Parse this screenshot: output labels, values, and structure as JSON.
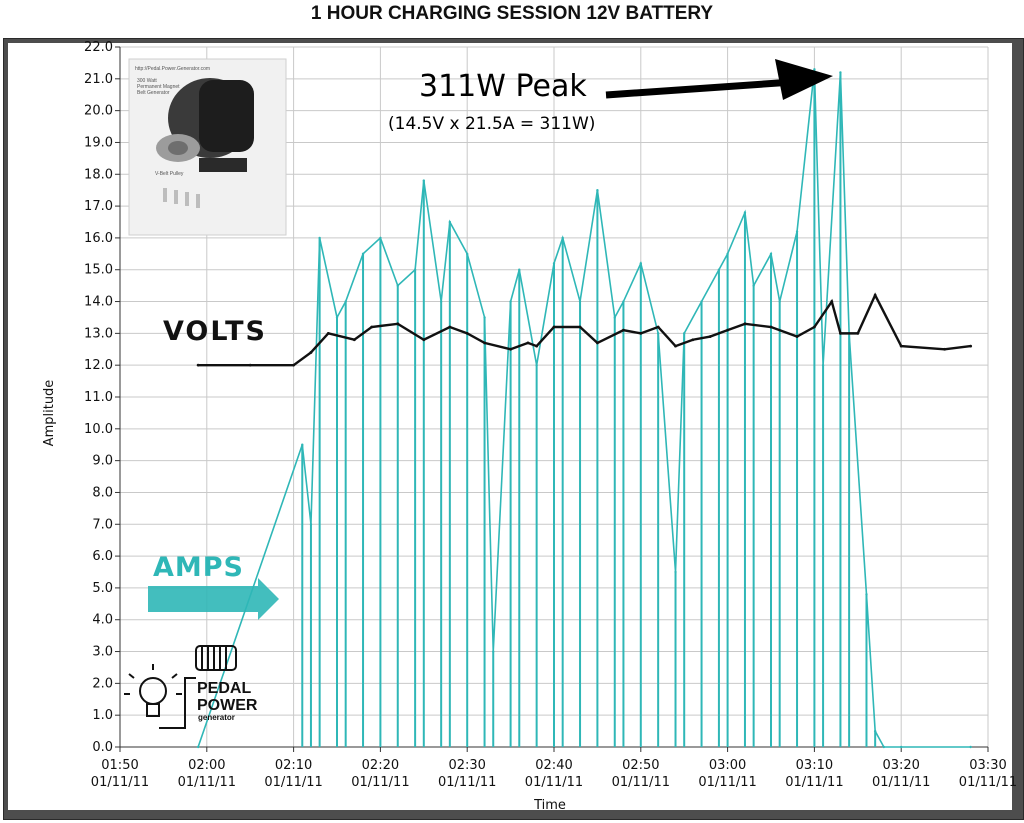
{
  "title": "1 HOUR CHARGING SESSION 12V BATTERY",
  "chart_data": {
    "type": "line",
    "xlabel": "Time",
    "ylabel": "Amplitude",
    "ylim": [
      0,
      22
    ],
    "yticks": [
      "0.0",
      "1.0",
      "2.0",
      "3.0",
      "4.0",
      "5.0",
      "6.0",
      "7.0",
      "8.0",
      "9.0",
      "10.0",
      "11.0",
      "12.0",
      "13.0",
      "14.0",
      "15.0",
      "16.0",
      "17.0",
      "18.0",
      "19.0",
      "20.0",
      "21.0",
      "22.0"
    ],
    "xlim": [
      "01:50",
      "03:30"
    ],
    "xticks": [
      {
        "time": "01:50",
        "date": "01/11/11"
      },
      {
        "time": "02:00",
        "date": "01/11/11"
      },
      {
        "time": "02:10",
        "date": "01/11/11"
      },
      {
        "time": "02:20",
        "date": "01/11/11"
      },
      {
        "time": "02:30",
        "date": "01/11/11"
      },
      {
        "time": "02:40",
        "date": "01/11/11"
      },
      {
        "time": "02:50",
        "date": "01/11/11"
      },
      {
        "time": "03:00",
        "date": "01/11/11"
      },
      {
        "time": "03:10",
        "date": "01/11/11"
      },
      {
        "time": "03:20",
        "date": "01/11/11"
      },
      {
        "time": "03:30",
        "date": "01/11/11"
      }
    ],
    "grid": true,
    "series": [
      {
        "name": "VOLTS",
        "color": "#111111",
        "x": [
          "01:59",
          "02:05",
          "02:10",
          "02:12",
          "02:14",
          "02:17",
          "02:19",
          "02:22",
          "02:25",
          "02:28",
          "02:30",
          "02:32",
          "02:35",
          "02:37",
          "02:38",
          "02:40",
          "02:43",
          "02:45",
          "02:48",
          "02:50",
          "02:52",
          "02:54",
          "02:56",
          "02:58",
          "03:00",
          "03:02",
          "03:05",
          "03:08",
          "03:10",
          "03:12",
          "03:13",
          "03:15",
          "03:17",
          "03:20",
          "03:25",
          "03:28"
        ],
        "values": [
          12.0,
          12.0,
          12.0,
          12.4,
          13.0,
          12.8,
          13.2,
          13.3,
          12.8,
          13.2,
          13.0,
          12.7,
          12.5,
          12.7,
          12.6,
          13.2,
          13.2,
          12.7,
          13.1,
          13.0,
          13.2,
          12.6,
          12.8,
          12.9,
          13.1,
          13.3,
          13.2,
          12.9,
          13.2,
          14.0,
          13.0,
          13.0,
          14.2,
          12.6,
          12.5,
          12.6
        ]
      },
      {
        "name": "AMPS",
        "color": "#2fb7b7",
        "x": [
          "01:59",
          "02:11",
          "02:12",
          "02:13",
          "02:15",
          "02:16",
          "02:18",
          "02:20",
          "02:22",
          "02:24",
          "02:25",
          "02:27",
          "02:28",
          "02:30",
          "02:32",
          "02:33",
          "02:35",
          "02:36",
          "02:38",
          "02:40",
          "02:41",
          "02:43",
          "02:45",
          "02:47",
          "02:48",
          "02:50",
          "02:52",
          "02:54",
          "02:55",
          "02:57",
          "02:59",
          "03:00",
          "03:02",
          "03:03",
          "03:05",
          "03:06",
          "03:08",
          "03:10",
          "03:11",
          "03:13",
          "03:14",
          "03:16",
          "03:17",
          "03:18",
          "03:20",
          "03:28"
        ],
        "values": [
          0,
          9.5,
          7.0,
          16.0,
          13.5,
          14.0,
          15.5,
          16.0,
          14.5,
          15.0,
          17.8,
          14.0,
          16.5,
          15.5,
          13.5,
          3.0,
          14.0,
          15.0,
          12.0,
          15.2,
          16.0,
          14.0,
          17.5,
          13.5,
          14.0,
          15.2,
          13.0,
          5.5,
          13.0,
          14.0,
          15.0,
          15.5,
          16.8,
          14.5,
          15.5,
          14.0,
          16.2,
          21.3,
          12.0,
          21.2,
          13.0,
          4.8,
          0.5,
          0,
          0,
          0
        ]
      }
    ],
    "annotations": {
      "peak": "311W Peak",
      "peak_formula": "(14.5V x 21.5A = 311W)",
      "volts": "VOLTS",
      "amps": "AMPS"
    }
  },
  "photo": {
    "url_text": "http://Pedal.Power.Generator.com",
    "caption_lines": [
      "300 Watt",
      "Permanent Magnet",
      "Belt Generator"
    ],
    "pulley_label": "V-Belt Pulley"
  },
  "logo": {
    "line1": "PEDAL",
    "line2": "POWER",
    "line3": "generator"
  }
}
